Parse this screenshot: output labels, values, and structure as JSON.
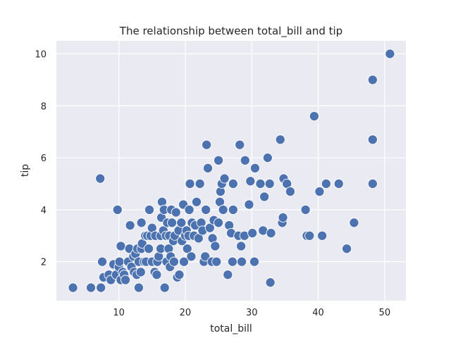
{
  "colors": {
    "background": "#ffffff",
    "plot_area": "#eaeaf2",
    "grid": "#ffffff",
    "point_fill": "#4c72b0",
    "point_edge": "#ffffff",
    "text": "#262626"
  },
  "chart_data": {
    "type": "scatter",
    "title": "The relationship between total_bill and tip",
    "xlabel": "total_bill",
    "ylabel": "tip",
    "xlim": [
      0.6,
      53.2
    ],
    "ylim": [
      0.5,
      10.5
    ],
    "xticks": [
      10,
      20,
      30,
      40,
      50
    ],
    "yticks": [
      2,
      4,
      6,
      8,
      10
    ],
    "grid": true,
    "series": [
      {
        "points": [
          [
            3.1,
            1.0
          ],
          [
            5.8,
            1.0
          ],
          [
            7.3,
            1.0
          ],
          [
            7.2,
            5.2
          ],
          [
            7.5,
            2.0
          ],
          [
            7.7,
            1.4
          ],
          [
            8.5,
            1.5
          ],
          [
            8.8,
            1.3
          ],
          [
            9.2,
            1.9
          ],
          [
            9.6,
            1.5
          ],
          [
            9.8,
            4.0
          ],
          [
            10.0,
            1.8
          ],
          [
            10.1,
            2.0
          ],
          [
            10.3,
            1.3
          ],
          [
            10.3,
            2.6
          ],
          [
            10.6,
            1.6
          ],
          [
            10.8,
            1.5
          ],
          [
            11.0,
            1.3
          ],
          [
            11.4,
            2.0
          ],
          [
            11.6,
            2.5
          ],
          [
            11.7,
            3.4
          ],
          [
            11.9,
            1.8
          ],
          [
            12.2,
            2.2
          ],
          [
            12.3,
            1.6
          ],
          [
            12.5,
            2.3
          ],
          [
            12.7,
            1.5
          ],
          [
            12.8,
            2.5
          ],
          [
            13.0,
            1.0
          ],
          [
            13.0,
            2.0
          ],
          [
            13.3,
            1.6
          ],
          [
            13.4,
            2.5
          ],
          [
            13.4,
            3.5
          ],
          [
            13.5,
            2.7
          ],
          [
            13.8,
            2.0
          ],
          [
            14.0,
            3.0
          ],
          [
            14.1,
            2.0
          ],
          [
            14.3,
            3.0
          ],
          [
            14.5,
            2.5
          ],
          [
            14.6,
            4.0
          ],
          [
            14.8,
            3.0
          ],
          [
            15.0,
            2.0
          ],
          [
            15.0,
            3.3
          ],
          [
            15.4,
            1.6
          ],
          [
            15.5,
            3.0
          ],
          [
            15.7,
            1.5
          ],
          [
            15.8,
            2.0
          ],
          [
            16.0,
            2.2
          ],
          [
            16.3,
            2.5
          ],
          [
            16.3,
            3.0
          ],
          [
            16.4,
            3.7
          ],
          [
            16.5,
            4.3
          ],
          [
            16.7,
            3.2
          ],
          [
            16.8,
            4.0
          ],
          [
            16.9,
            1.0
          ],
          [
            17.1,
            3.0
          ],
          [
            17.2,
            2.0
          ],
          [
            17.3,
            3.5
          ],
          [
            17.5,
            2.5
          ],
          [
            17.6,
            3.0
          ],
          [
            17.7,
            1.8
          ],
          [
            17.8,
            2.2
          ],
          [
            17.9,
            4.0
          ],
          [
            18.0,
            3.5
          ],
          [
            18.2,
            2.8
          ],
          [
            18.3,
            2.0
          ],
          [
            18.4,
            3.0
          ],
          [
            18.6,
            3.9
          ],
          [
            18.8,
            1.4
          ],
          [
            19.0,
            3.2
          ],
          [
            19.1,
            1.5
          ],
          [
            19.4,
            3.5
          ],
          [
            19.5,
            2.8
          ],
          [
            19.7,
            4.2
          ],
          [
            19.8,
            2.0
          ],
          [
            20.0,
            3.0
          ],
          [
            20.2,
            3.2
          ],
          [
            20.3,
            2.5
          ],
          [
            20.5,
            3.0
          ],
          [
            20.6,
            4.0
          ],
          [
            20.7,
            5.0
          ],
          [
            20.9,
            2.2
          ],
          [
            21.0,
            3.5
          ],
          [
            21.3,
            3.0
          ],
          [
            21.5,
            3.4
          ],
          [
            21.7,
            4.3
          ],
          [
            22.0,
            2.9
          ],
          [
            22.2,
            5.0
          ],
          [
            22.4,
            3.5
          ],
          [
            22.6,
            3.2
          ],
          [
            22.8,
            2.0
          ],
          [
            23.0,
            2.2
          ],
          [
            23.1,
            4.0
          ],
          [
            23.2,
            6.5
          ],
          [
            23.4,
            5.6
          ],
          [
            23.7,
            3.3
          ],
          [
            24.0,
            2.0
          ],
          [
            24.1,
            2.9
          ],
          [
            24.3,
            3.6
          ],
          [
            24.5,
            2.6
          ],
          [
            24.7,
            2.0
          ],
          [
            25.0,
            3.5
          ],
          [
            25.0,
            5.9
          ],
          [
            25.2,
            4.3
          ],
          [
            25.3,
            4.7
          ],
          [
            25.5,
            5.0
          ],
          [
            25.7,
            4.0
          ],
          [
            25.9,
            5.2
          ],
          [
            26.4,
            1.5
          ],
          [
            26.6,
            3.4
          ],
          [
            26.9,
            3.1
          ],
          [
            27.1,
            2.0
          ],
          [
            27.2,
            4.0
          ],
          [
            27.2,
            5.0
          ],
          [
            28.0,
            3.0
          ],
          [
            28.2,
            6.5
          ],
          [
            28.4,
            2.6
          ],
          [
            28.5,
            2.0
          ],
          [
            28.9,
            3.0
          ],
          [
            29.0,
            5.9
          ],
          [
            29.6,
            4.2
          ],
          [
            29.8,
            5.1
          ],
          [
            30.1,
            3.1
          ],
          [
            30.4,
            2.0
          ],
          [
            30.5,
            5.6
          ],
          [
            31.3,
            5.0
          ],
          [
            31.7,
            3.2
          ],
          [
            31.9,
            4.5
          ],
          [
            32.4,
            6.0
          ],
          [
            32.7,
            5.0
          ],
          [
            32.8,
            1.2
          ],
          [
            32.9,
            3.1
          ],
          [
            34.3,
            6.7
          ],
          [
            34.6,
            3.5
          ],
          [
            34.7,
            3.7
          ],
          [
            34.8,
            5.2
          ],
          [
            35.3,
            5.0
          ],
          [
            35.8,
            4.7
          ],
          [
            38.1,
            4.0
          ],
          [
            38.3,
            3.0
          ],
          [
            38.7,
            3.0
          ],
          [
            39.4,
            7.6
          ],
          [
            40.2,
            4.7
          ],
          [
            40.6,
            3.0
          ],
          [
            41.2,
            5.0
          ],
          [
            43.1,
            5.0
          ],
          [
            44.3,
            2.5
          ],
          [
            45.4,
            3.5
          ],
          [
            48.2,
            9.0
          ],
          [
            48.2,
            6.7
          ],
          [
            48.2,
            5.0
          ],
          [
            50.8,
            10.0
          ]
        ]
      }
    ]
  }
}
